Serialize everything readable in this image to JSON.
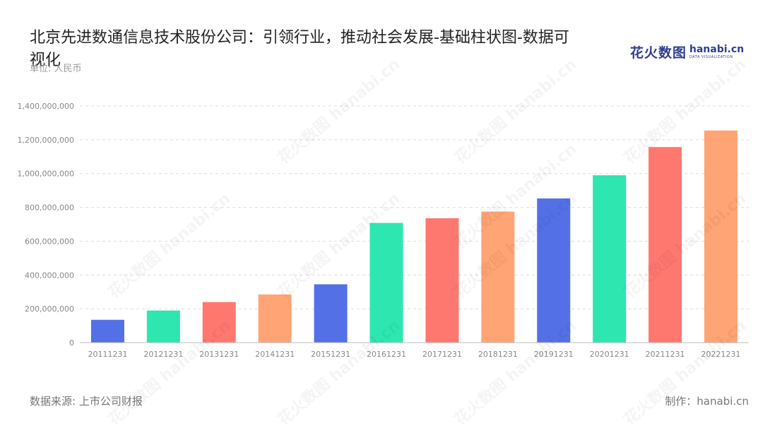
{
  "title": "北京先进数通信息技术股份公司：引领行业，推动社会发展-基础柱状图-数据可视化",
  "unit_label": "单位: 人民币",
  "logo": {
    "cn": "花火数图",
    "en": "hanabi.cn",
    "sub": "DATA VISUALIZATION"
  },
  "footer": {
    "source": "数据来源: 上市公司财报",
    "maker": "制作：hanabi.cn"
  },
  "colors": [
    "#5470e6",
    "#2de6b0",
    "#ff7870",
    "#ffa474"
  ],
  "chart_data": {
    "type": "bar",
    "categories": [
      "20111231",
      "20121231",
      "20131231",
      "20141231",
      "20151231",
      "20161231",
      "20171231",
      "20181231",
      "20191231",
      "20201231",
      "20211231",
      "20221231"
    ],
    "values": [
      135000000,
      190000000,
      240000000,
      285000000,
      345000000,
      708000000,
      736000000,
      775000000,
      853000000,
      990000000,
      1157000000,
      1255000000
    ],
    "bar_colors": [
      "#5470e6",
      "#2de6b0",
      "#ff7870",
      "#ffa474",
      "#5470e6",
      "#2de6b0",
      "#ff7870",
      "#ffa474",
      "#5470e6",
      "#2de6b0",
      "#ff7870",
      "#ffa474"
    ],
    "ylim": [
      0,
      1400000000
    ],
    "yticks": [
      "0",
      "200,000,000",
      "400,000,000",
      "600,000,000",
      "800,000,000",
      "1,000,000,000",
      "1,200,000,000",
      "1,400,000,000"
    ],
    "grid": true
  }
}
